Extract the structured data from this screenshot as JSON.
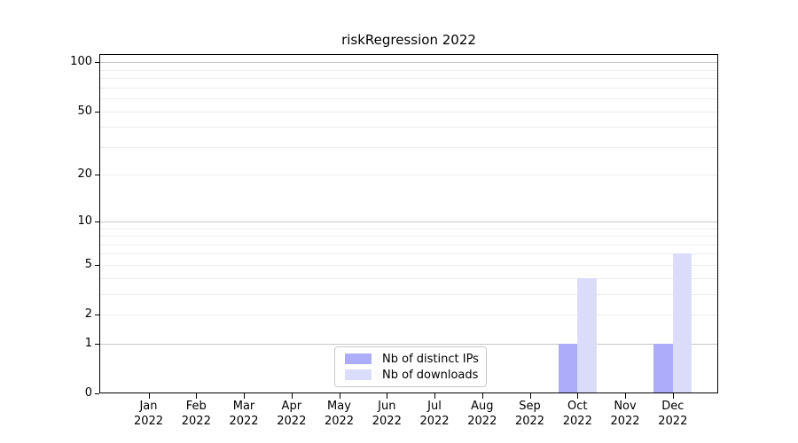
{
  "chart_data": {
    "type": "bar",
    "title": "riskRegression 2022",
    "categories": [
      "Jan",
      "Feb",
      "Mar",
      "Apr",
      "May",
      "Jun",
      "Jul",
      "Aug",
      "Sep",
      "Oct",
      "Nov",
      "Dec"
    ],
    "year_label": "2022",
    "series": [
      {
        "name": "Nb of distinct IPs",
        "color": "#acacfa",
        "values": [
          0,
          0,
          0,
          0,
          0,
          0,
          0,
          0,
          0,
          1,
          0,
          1
        ]
      },
      {
        "name": "Nb of downloads",
        "color": "#dbdbfa",
        "values": [
          0,
          0,
          0,
          0,
          0,
          0,
          0,
          0,
          0,
          4,
          0,
          6
        ]
      }
    ],
    "y_axis": {
      "scale": "log1p",
      "tick_values": [
        0,
        1,
        2,
        5,
        10,
        20,
        50,
        100
      ],
      "gridline_values": [
        1,
        2,
        3,
        4,
        5,
        6,
        7,
        8,
        9,
        10,
        20,
        30,
        40,
        50,
        60,
        70,
        80,
        90,
        100
      ],
      "major_gridlines": [
        1,
        10,
        100
      ],
      "top_value": 112
    },
    "x_axis": {
      "label_line2": "2022"
    },
    "legend": {
      "position": "bottom-center",
      "entries": [
        "Nb of distinct IPs",
        "Nb of downloads"
      ]
    },
    "grid": "horizontal",
    "colors": {
      "major_gridline": "#c6c6c6",
      "minor_gridline": "#ededed",
      "axis": "#000000",
      "background": "#ffffff"
    }
  }
}
